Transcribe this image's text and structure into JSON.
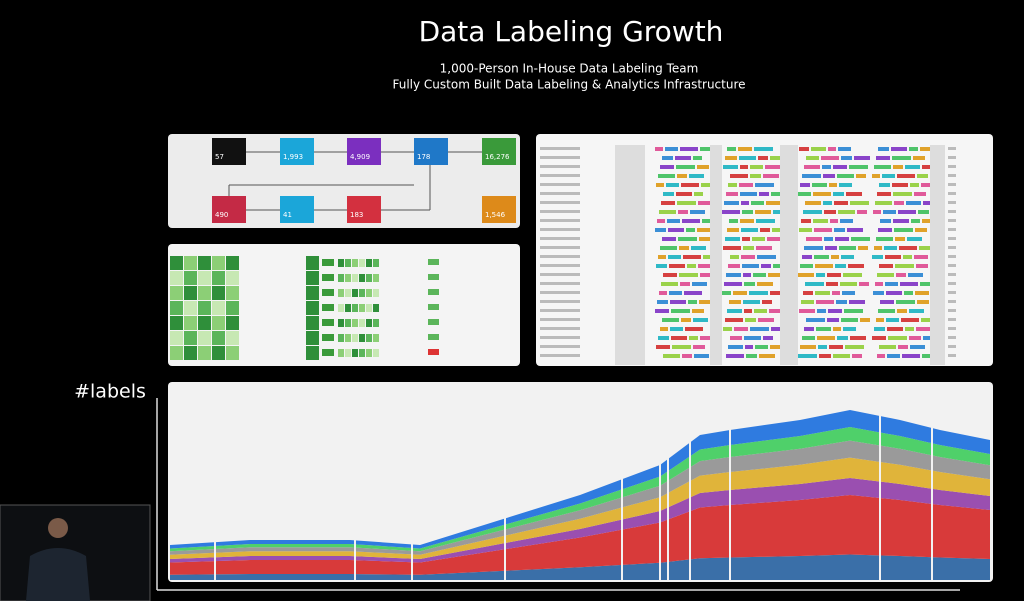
{
  "slide": {
    "title": "Data Labeling Growth",
    "subtitle_lines": [
      "1,000-Person In-House Data Labeling Team",
      "Fully Custom Built Data Labeling & Analytics Infrastructure"
    ],
    "axis_label": "#labels"
  },
  "flow": {
    "nodes": [
      {
        "label": "57"
      },
      {
        "label": "1,993"
      },
      {
        "label": "4,909"
      },
      {
        "label": "178"
      },
      {
        "label": "16,276"
      },
      {
        "label": "490"
      },
      {
        "label": "41"
      },
      {
        "label": "183"
      },
      {
        "label": "1,546"
      }
    ]
  }
}
